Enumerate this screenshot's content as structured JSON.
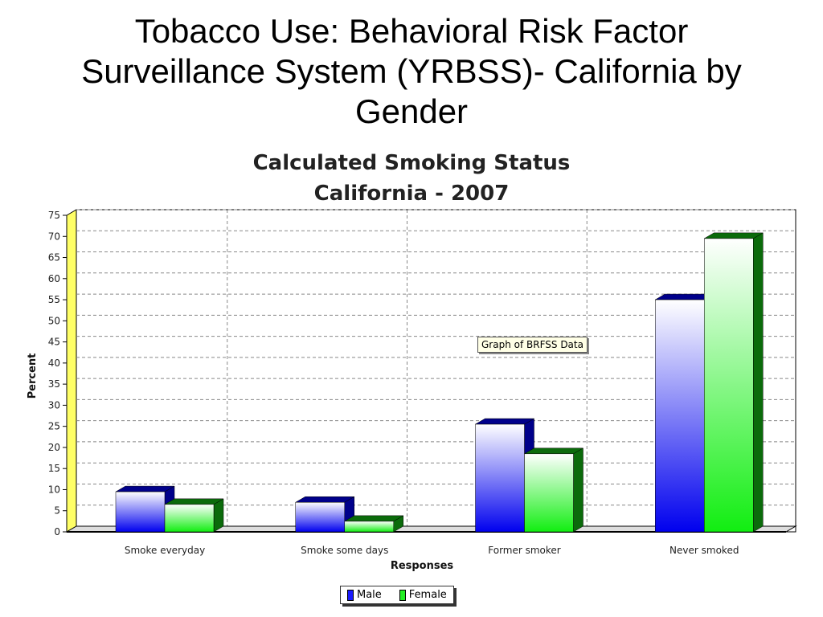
{
  "slide": {
    "title_lines": [
      "Tobacco Use: Behavioral Risk Factor",
      "Surveillance System (YRBSS)- California by",
      "Gender"
    ]
  },
  "chart_data": {
    "type": "bar",
    "title_lines": [
      "Calculated Smoking Status",
      "California - 2007"
    ],
    "categories": [
      "Smoke everyday",
      "Smoke some days",
      "Former smoker",
      "Never smoked"
    ],
    "series": [
      {
        "name": "Male",
        "values": [
          9.5,
          7,
          25.5,
          55
        ],
        "color": "#1a1aff",
        "side_color": "#00008b"
      },
      {
        "name": "Female",
        "values": [
          6.5,
          2.5,
          18.5,
          69.5
        ],
        "color": "#22ee22",
        "side_color": "#0b6b0b"
      }
    ],
    "xlabel": "Responses",
    "ylabel": "Percent",
    "ylim": [
      0,
      75
    ],
    "yticks": [
      0,
      5,
      10,
      15,
      20,
      25,
      30,
      35,
      40,
      45,
      50,
      55,
      60,
      65,
      70,
      75
    ],
    "grid": true,
    "legend_position": "bottom",
    "tooltip": "Graph of BRFSS Data"
  }
}
